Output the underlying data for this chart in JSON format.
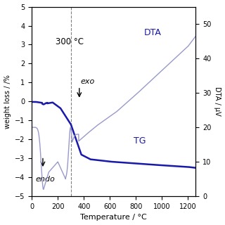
{
  "title": "",
  "xlabel": "Temperature / °C",
  "ylabel_left": "weight loss / /%",
  "ylabel_right": "DTA / μV",
  "xlim": [
    0,
    1260
  ],
  "ylim_left": [
    -5,
    5
  ],
  "ylim_right": [
    0,
    55
  ],
  "xticks": [
    0,
    200,
    400,
    600,
    800,
    1000,
    1200
  ],
  "yticks_left": [
    -5,
    -4,
    -3,
    -2,
    -1,
    0,
    1,
    2,
    3,
    4,
    5
  ],
  "yticks_right": [
    0,
    10,
    20,
    30,
    40,
    50
  ],
  "tg_color": "#1a1aaa",
  "dta_color": "#9999cc",
  "vline_x": 300,
  "label_300": "300 °C",
  "label_exo": "exo",
  "label_endo": "endo",
  "label_DTA": "DTA",
  "label_TG": "TG"
}
